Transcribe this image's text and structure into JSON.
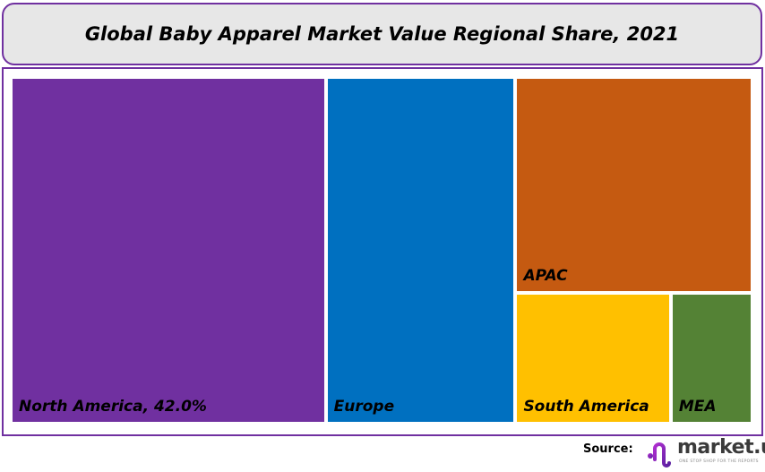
{
  "chart_data": {
    "type": "treemap",
    "title": "Global Baby Apparel Market Value Regional Share, 2021",
    "unit": "%",
    "items": [
      {
        "name": "North America",
        "label": "North America, 42.0%",
        "value": 42.0,
        "color": "#7030a0"
      },
      {
        "name": "Europe",
        "label": "Europe",
        "value": 25.3,
        "color": "#0070c0"
      },
      {
        "name": "APAC",
        "label": "APAC",
        "value": 19.7,
        "color": "#c55a11"
      },
      {
        "name": "South America",
        "label": "South America",
        "value": 7.8,
        "color": "#ffc000"
      },
      {
        "name": "MEA",
        "label": "MEA",
        "value": 4.1,
        "color": "#548235"
      }
    ]
  },
  "footer": {
    "source_label": "Source:",
    "logo_text": "market.us",
    "logo_tagline": "ONE STOP SHOP FOR THE REPORTS"
  },
  "colors": {
    "frame": "#7030a0",
    "title_bg": "#e7e7e7"
  }
}
